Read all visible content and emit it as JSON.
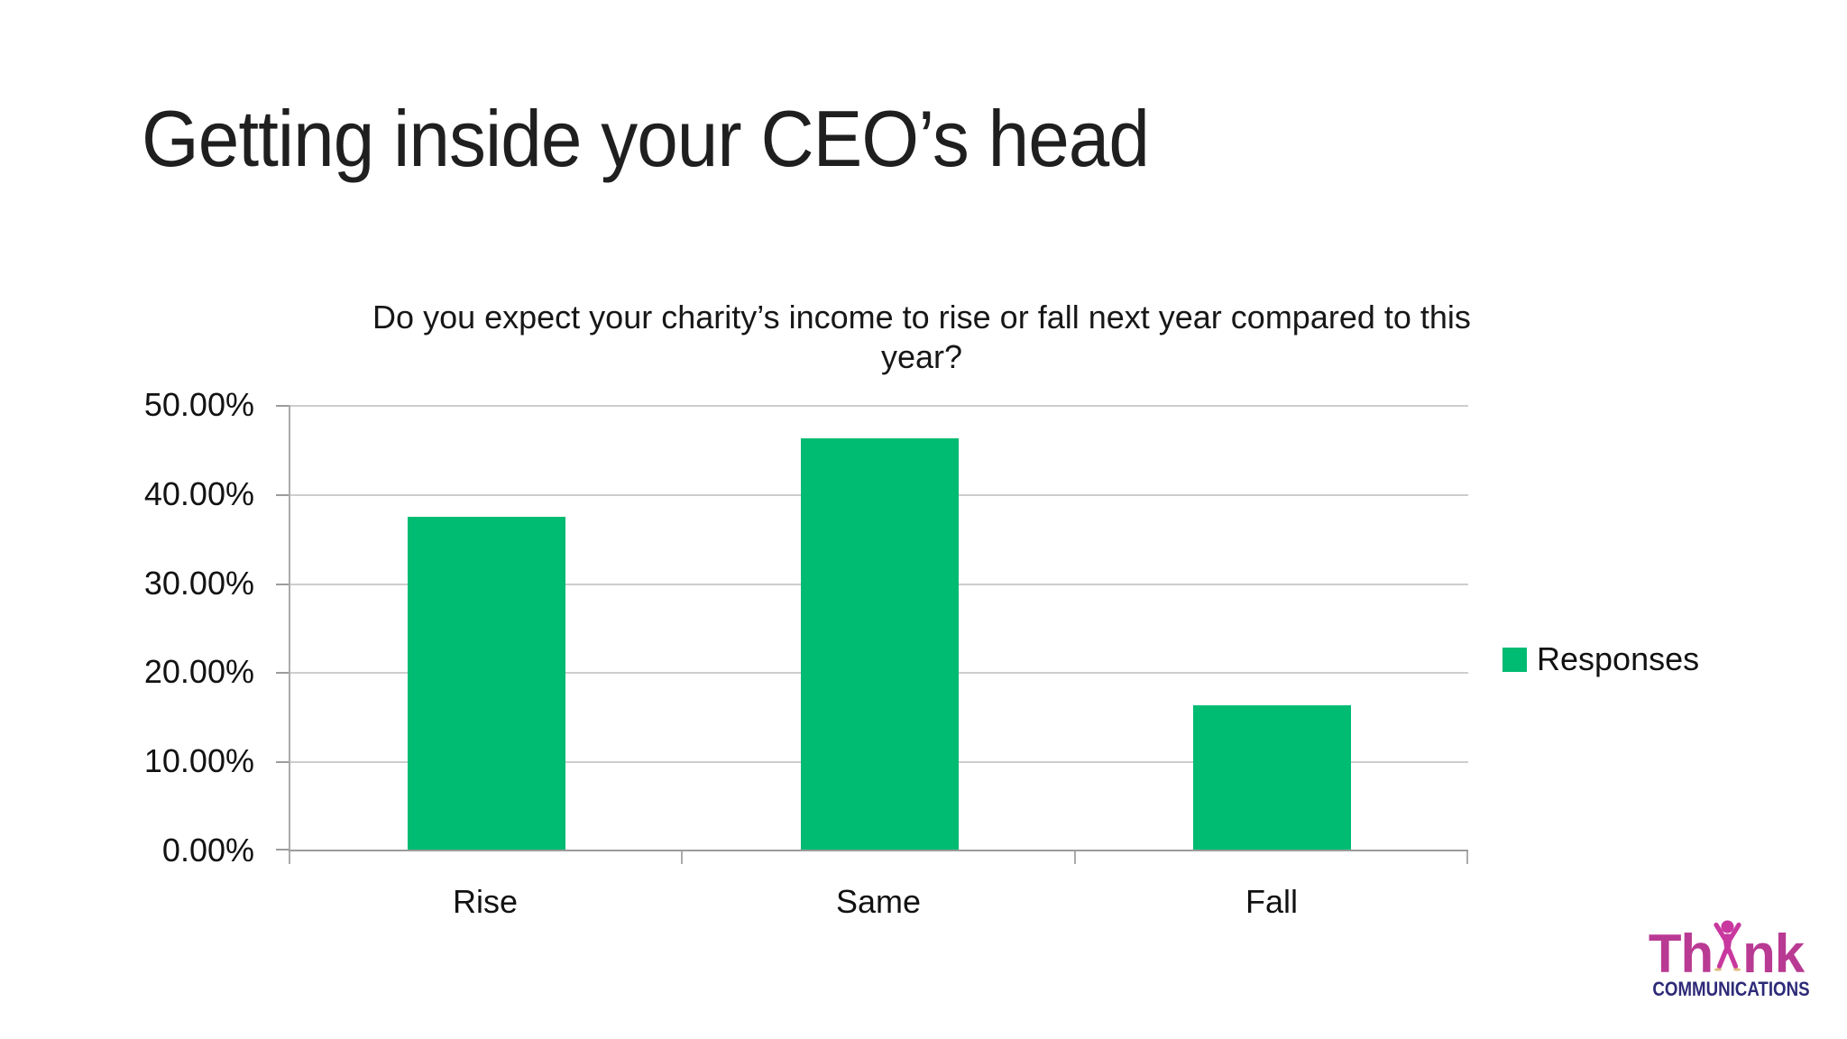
{
  "slide": {
    "title": "Getting inside your CEO’s head"
  },
  "chart_data": {
    "type": "bar",
    "title": "Do you expect your charity’s income to rise or fall next year compared to this year?",
    "title_lines": [
      "Do you expect your charity’s income to rise or fall next year compared to this",
      "year?"
    ],
    "categories": [
      "Rise",
      "Same",
      "Fall"
    ],
    "series": [
      {
        "name": "Responses",
        "values": [
          37.5,
          46.25,
          16.25
        ]
      }
    ],
    "value_format": "percent",
    "xlabel": "",
    "ylabel": "",
    "ylim": [
      0,
      50
    ],
    "y_ticks": [
      "50.00%",
      "40.00%",
      "30.00%",
      "20.00%",
      "10.00%",
      "0.00%"
    ],
    "grid": true,
    "legend_position": "right"
  },
  "legend": {
    "label": "Responses"
  },
  "logo": {
    "brand": "Think",
    "brand_prefix": "Th",
    "brand_suffix": "nk",
    "person_icon": "raised-arms-person-icon",
    "subtitle": "COMMUNICATIONS"
  },
  "colors": {
    "bar-green": "#00bb72",
    "grid-line": "#cdcdcd",
    "axis-line": "#9c9c9c",
    "text": "#1a1a1a",
    "logo-magenta": "#b93a93",
    "logo-person": "#c8389e",
    "logo-navy": "#2d2a78",
    "foot-shadow": "#d8b06a"
  }
}
